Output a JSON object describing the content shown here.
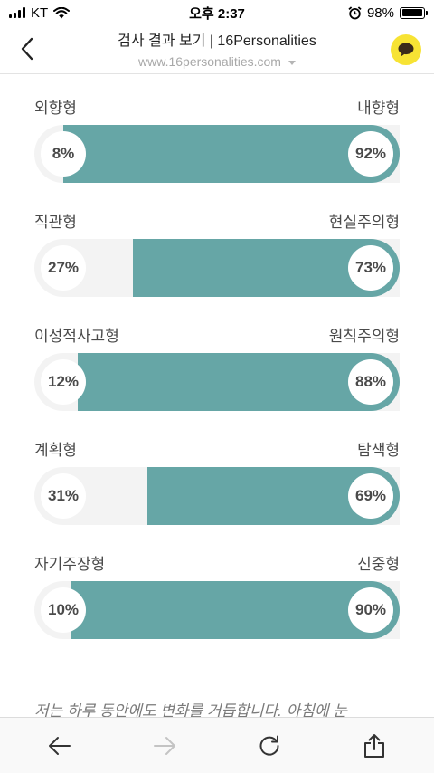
{
  "status_bar": {
    "carrier": "KT",
    "time": "오후 2:37",
    "battery": "98%",
    "battery_level": 0.98
  },
  "header": {
    "title": "검사 결과 보기 | 16Personalities",
    "url": "www.16personalities.com"
  },
  "traits": [
    {
      "left_label": "외향형",
      "right_label": "내향형",
      "left_value": "8%",
      "right_value": "92%",
      "right_fraction": 0.92
    },
    {
      "left_label": "직관형",
      "right_label": "현실주의형",
      "left_value": "27%",
      "right_value": "73%",
      "right_fraction": 0.73
    },
    {
      "left_label": "이성적사고형",
      "right_label": "원칙주의형",
      "left_value": "12%",
      "right_value": "88%",
      "right_fraction": 0.88
    },
    {
      "left_label": "계획형",
      "right_label": "탐색형",
      "left_value": "31%",
      "right_value": "69%",
      "right_fraction": 0.69
    },
    {
      "left_label": "자기주장형",
      "right_label": "신중형",
      "left_value": "10%",
      "right_value": "90%",
      "right_fraction": 0.9
    }
  ],
  "description": "저는 하루 동안에도 변화를 거듭합니다. 아침에 눈",
  "colors": {
    "accent": "#66a6a6",
    "track": "#f3f3f3",
    "chat": "#f7e334"
  },
  "icons": {
    "back": "chevron-left-icon",
    "chat": "chat-bubble-icon",
    "nav_back": "arrow-left-icon",
    "nav_forward": "arrow-right-icon",
    "reload": "reload-icon",
    "share": "share-icon"
  }
}
